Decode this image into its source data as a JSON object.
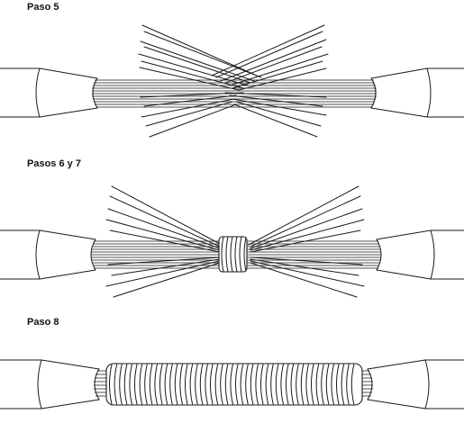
{
  "steps": [
    {
      "label": "Paso 5"
    },
    {
      "label": "Pasos 6 y 7"
    },
    {
      "label": "Paso 8"
    }
  ],
  "colors": {
    "line": "#1a1a1a",
    "background": "#ffffff"
  }
}
